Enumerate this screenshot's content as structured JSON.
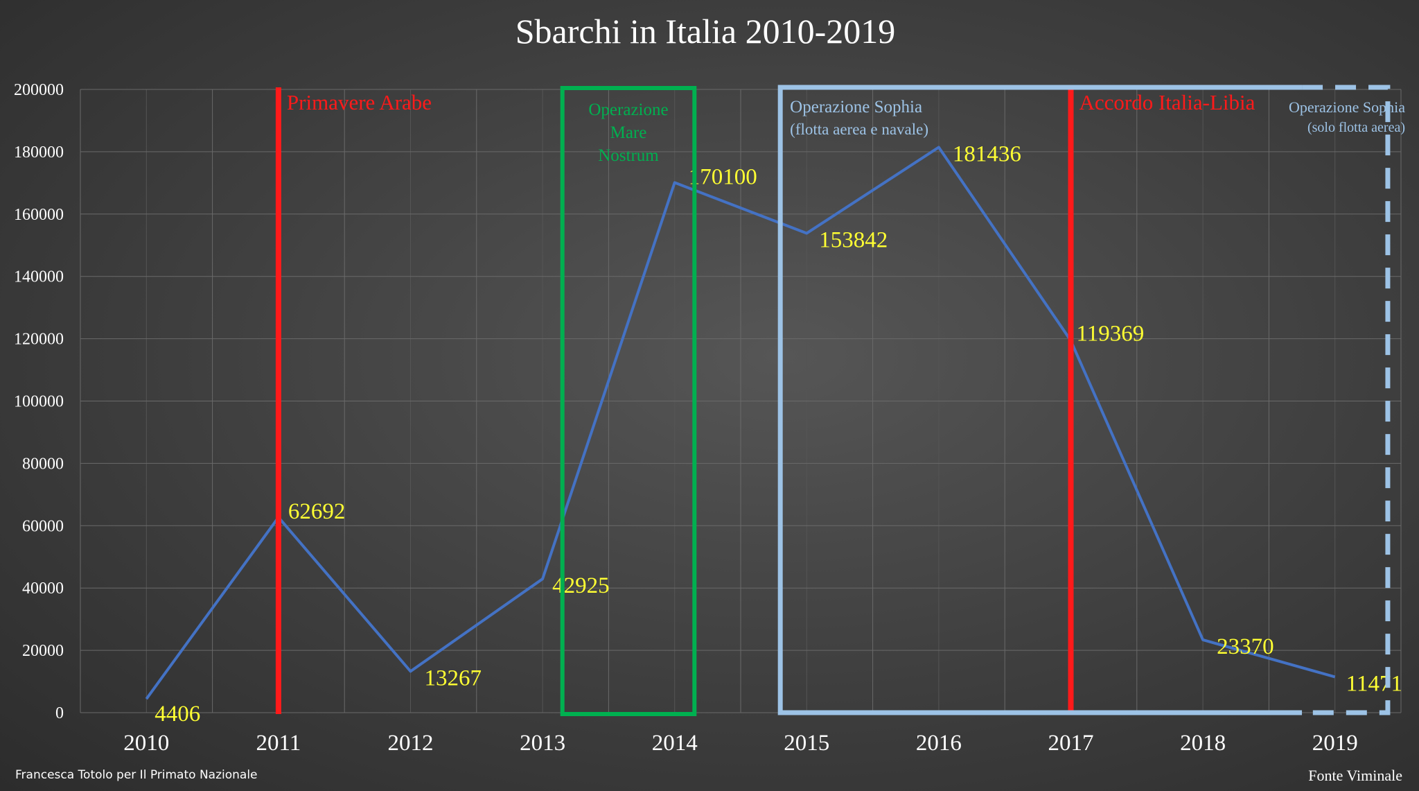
{
  "chart_data": {
    "type": "line",
    "title": "Sbarchi in Italia 2010-2019",
    "x": [
      "2010",
      "2011",
      "2012",
      "2013",
      "2014",
      "2015",
      "2016",
      "2017",
      "2018",
      "2019"
    ],
    "series": [
      {
        "values": [
          4406,
          62692,
          13267,
          42925,
          170100,
          153842,
          181436,
          119369,
          23370,
          11471
        ]
      }
    ],
    "data_labels": [
      "4406",
      "62692",
      "13267",
      "42925",
      "170100",
      "153842",
      "181436",
      "119369",
      "23370",
      "11471"
    ],
    "ylim": [
      0,
      200000
    ],
    "yticks": [
      "0",
      "20000",
      "40000",
      "60000",
      "80000",
      "100000",
      "120000",
      "140000",
      "160000",
      "180000",
      "200000"
    ],
    "grid": true,
    "annotations": {
      "primavere_arabe": {
        "label": "Primavere Arabe",
        "x": 2011
      },
      "accordo_italia_libia": {
        "label": "Accordo Italia-Libia",
        "x": 2017
      },
      "mare_nostrum": {
        "lines": [
          "Operazione",
          "Mare",
          "Nostrum"
        ],
        "x_start": 2013.15,
        "x_end": 2014.15
      },
      "sophia_full": {
        "lines": [
          "Operazione Sophia",
          "(flotta aerea e navale)"
        ],
        "x_start": 2014.8,
        "x_end": 2018.75
      },
      "sophia_air": {
        "lines": [
          "Operazione Sophia",
          "(solo flotta aerea)"
        ],
        "x_start": 2018.75,
        "x_end": 2019.4
      }
    },
    "colors": {
      "line": "#4472c4",
      "data_label": "#ffff33",
      "event_line": "#ff1a1a",
      "mare_nostrum": "#00b050",
      "sophia": "#9dc3e6",
      "grid": "#6a6a6a",
      "text": "#ffffff"
    }
  },
  "footer": {
    "credit": "Francesca Totolo per Il Primato Nazionale",
    "source": "Fonte Viminale"
  }
}
